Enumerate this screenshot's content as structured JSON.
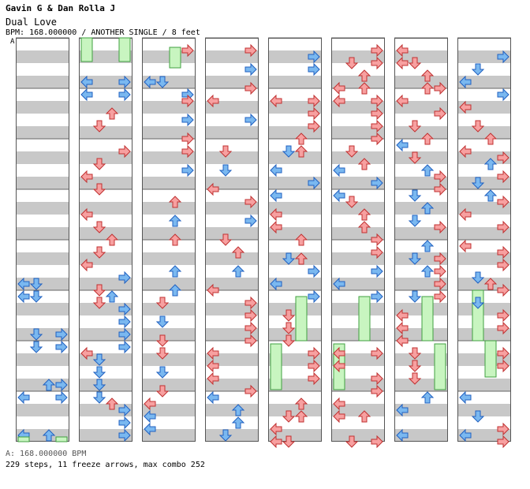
{
  "header": {
    "title": "Gavin G & Dan Rolla J",
    "song": "Dual Love",
    "info": "BPM: 168.000000 / ANOTHER SINGLE / 8 feet"
  },
  "chart": {
    "bpm_marker": "A",
    "columns": 8,
    "measures_per_column": 8,
    "colors": {
      "red": "#f7a0a0",
      "blue": "#7ab8f0",
      "freeze": "#c8f5c0",
      "gray": "#c8c8c8"
    }
  },
  "footer": {
    "bpm_line": "A: 168.000000 BPM",
    "stats": "229 steps, 11 freeze arrows, max combo 252"
  }
}
